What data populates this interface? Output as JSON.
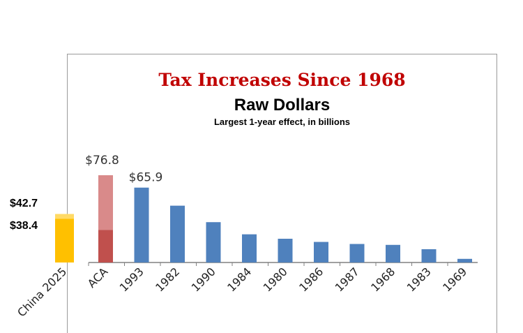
{
  "chart_data": {
    "type": "bar",
    "title": "Tax Increases Since 1968",
    "subtitle": "Raw Dollars",
    "note": "Largest 1-year effect, in billions",
    "categories": [
      "China 2025",
      "ACA",
      "1993",
      "1982",
      "1990",
      "1984",
      "1980",
      "1986",
      "1987",
      "1968",
      "1983",
      "1969"
    ],
    "values": [
      42.7,
      76.8,
      65.9,
      50.0,
      35.5,
      24.8,
      20.9,
      18.1,
      16.3,
      15.5,
      11.7,
      3.2
    ],
    "inner_values": {
      "China 2025": 38.4,
      "ACA": 28.6
    },
    "data_labels": {
      "ACA": "$76.8",
      "1993": "$65.9"
    },
    "external_labels": [
      "$42.7",
      "$38.4"
    ],
    "ylim": [
      0,
      80
    ],
    "colors": {
      "bar": "#4f81bd",
      "aca_light": "#d98a8a",
      "aca_dark": "#c0504d",
      "gold": "#ffc000",
      "gold_light": "#ffda66",
      "title": "#c00000"
    },
    "grid": false,
    "legend": "none"
  }
}
